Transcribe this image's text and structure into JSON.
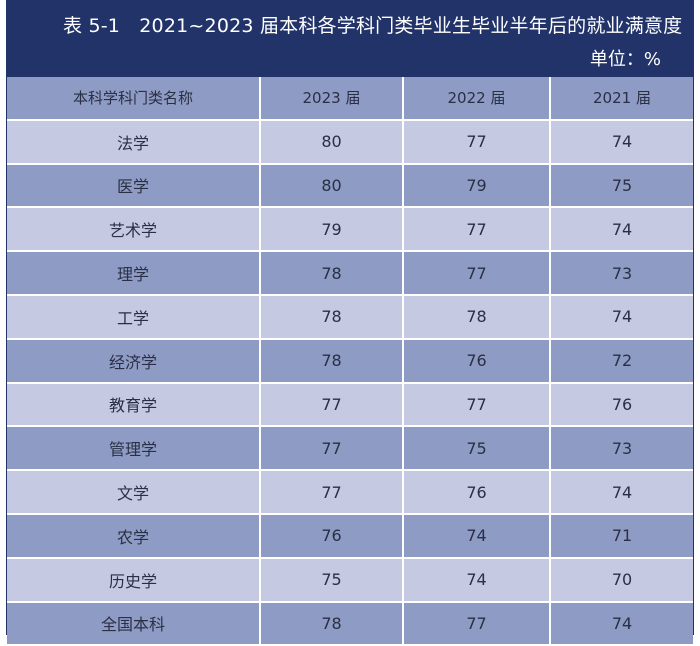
{
  "table": {
    "title": "表 5-1　2021~2023 届本科各学科门类毕业生毕业半年后的就业满意度",
    "unit": "单位：%",
    "headers": [
      "本科学科门类名称",
      "2023 届",
      "2022 届",
      "2021 届"
    ],
    "rows": [
      [
        "法学",
        "80",
        "77",
        "74"
      ],
      [
        "医学",
        "80",
        "79",
        "75"
      ],
      [
        "艺术学",
        "79",
        "77",
        "74"
      ],
      [
        "理学",
        "78",
        "77",
        "73"
      ],
      [
        "工学",
        "78",
        "78",
        "74"
      ],
      [
        "经济学",
        "78",
        "76",
        "72"
      ],
      [
        "教育学",
        "77",
        "77",
        "76"
      ],
      [
        "管理学",
        "77",
        "75",
        "73"
      ],
      [
        "文学",
        "77",
        "76",
        "74"
      ],
      [
        "农学",
        "76",
        "74",
        "71"
      ],
      [
        "历史学",
        "75",
        "74",
        "70"
      ],
      [
        "全国本科",
        "78",
        "77",
        "74"
      ]
    ]
  },
  "colors": {
    "header_bg": "#22336a",
    "row_dark": "#8e9bc4",
    "row_light": "#c5c9e1",
    "text": "#2a2f45"
  }
}
